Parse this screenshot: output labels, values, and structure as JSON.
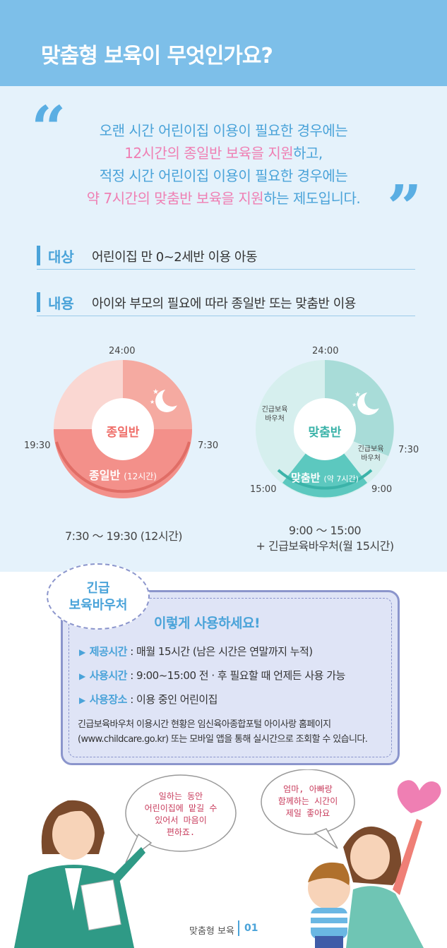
{
  "header": {
    "title": "맞춤형 보육이 무엇인가요?"
  },
  "intro": {
    "line1": "오랜 시간 어린이집 이용이 필요한 경우에는",
    "line2_pink": "12시간의 종일반 보육을 지원",
    "line2_rest": "하고,",
    "line3": "적정 시간 어린이집 이용이 필요한 경우에는",
    "line4_pink": "약 7시간의 맞춤반 보육을 지원",
    "line4_rest": "하는 제도입니다."
  },
  "target": {
    "key": "대상",
    "value": "어린이집 만 0~2세반 이용 아동"
  },
  "content": {
    "key": "내용",
    "value": "아이와 부모의 필요에 따라 종일반 또는 맞춤반 이용"
  },
  "clock_full": {
    "top": "24:00",
    "left": "19:30",
    "right": "7:30",
    "center": "종일반",
    "band_main": "종일반",
    "band_sub": "(12시간)",
    "caption": "7:30 ～ 19:30 (12시간)"
  },
  "clock_custom": {
    "top": "24:00",
    "right": "7:30",
    "bottom_left": "15:00",
    "bottom_right": "9:00",
    "center": "맞춤반",
    "left_note_1": "긴급보육",
    "left_note_2": "바우처",
    "right_note_1": "긴급보육",
    "right_note_2": "바우처",
    "band_main": "맞춤반",
    "band_sub": "(약 7시간)",
    "caption_1": "9:00 ～ 15:00",
    "caption_2": "+ 긴급보육바우처(월 15시간)"
  },
  "voucher": {
    "bubble_1": "긴급",
    "bubble_2": "보육바우처",
    "heading": "이렇게 사용하세요!",
    "items": [
      {
        "key": "제공시간",
        "value": " : 매월 15시간 (남은 시간은 연말까지 누적)"
      },
      {
        "key": "사용시간",
        "value": " : 9:00~15:00 전 · 후 필요할 때 언제든 사용 가능"
      },
      {
        "key": "사용장소",
        "value": " : 이용 중인 어린이집"
      }
    ],
    "note_1": "긴급보육바우처 이용시간 현황은 임신육아종합포털 아이사랑 홈페이지",
    "note_2": "(www.childcare.go.kr) 또는 모바일 앱을 통해 실시간으로 조회할 수 있습니다."
  },
  "speech_mom": [
    "일하는 동안",
    "어린이집에 맡길 수",
    "있어서 마음이",
    "편하죠."
  ],
  "speech_kids": [
    "엄마, 아빠랑",
    "함께하는 시간이",
    "제일 좋아요"
  ],
  "footer": {
    "label": "맞춤형 보육",
    "page": "01"
  },
  "colors": {
    "blue": "#4aa3d9",
    "pink": "#ef7fb3",
    "salmon": "#f08a80",
    "mint": "#5cc8bf"
  }
}
